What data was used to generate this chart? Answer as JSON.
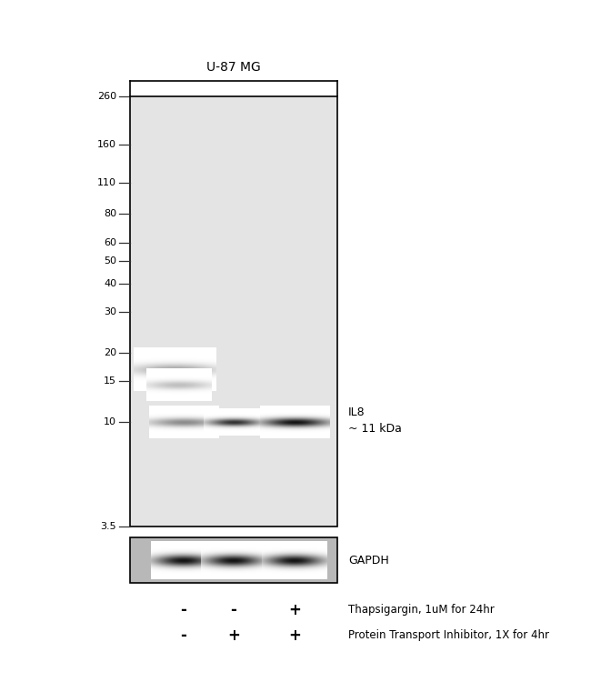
{
  "title": "U-87 MG",
  "main_blot_bg": "#e4e4e4",
  "gapdh_blot_bg": "#b8b8b8",
  "mw_markers": [
    260,
    160,
    110,
    80,
    60,
    50,
    40,
    30,
    20,
    15,
    10,
    3.5
  ],
  "il8_label": "IL8",
  "il8_kda": "~ 11 kDa",
  "gapdh_label": "GAPDH",
  "thapsigargin_label": "Thapsigargin, 1uM for 24hr",
  "pti_label": "Protein Transport Inhibitor, 1X for 4hr",
  "lane_signs_thapsigargin": [
    "-",
    "-",
    "+"
  ],
  "lane_signs_pti": [
    "-",
    "+",
    "+"
  ],
  "font_color": "#000000",
  "bracket_label": "U-87 MG"
}
